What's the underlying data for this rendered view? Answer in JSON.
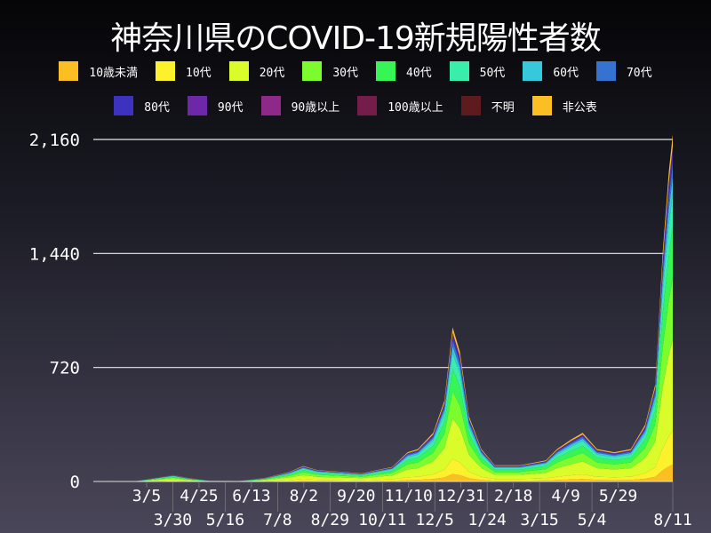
{
  "chart_data": {
    "type": "area",
    "stacked": true,
    "title": "神奈川県のCOVID-19新規陽性者数",
    "xlabel": "",
    "ylabel": "",
    "ylim": [
      0,
      2160
    ],
    "yticks": [
      "0",
      "720",
      "1,440",
      "2,160"
    ],
    "xticks": [
      "3/5",
      "3/30",
      "4/25",
      "5/16",
      "6/13",
      "7/8",
      "8/2",
      "8/29",
      "9/20",
      "10/11",
      "11/10",
      "12/5",
      "12/31",
      "1/24",
      "2/18",
      "3/15",
      "4/9",
      "5/4",
      "5/29",
      "8/11"
    ],
    "grid": "horizontal",
    "legend_placement": "top",
    "series": [
      {
        "name": "10歳未満",
        "color": "#fbbf24",
        "share": 0.05
      },
      {
        "name": "10代",
        "color": "#fcf12a",
        "share": 0.1
      },
      {
        "name": "20代",
        "color": "#d9fc2a",
        "share": 0.27
      },
      {
        "name": "30代",
        "color": "#7cfc2e",
        "share": 0.18
      },
      {
        "name": "40代",
        "color": "#37f555",
        "share": 0.15
      },
      {
        "name": "50代",
        "color": "#39eeaa",
        "share": 0.1
      },
      {
        "name": "60代",
        "color": "#38c8db",
        "share": 0.05
      },
      {
        "name": "70代",
        "color": "#3673d0",
        "share": 0.04
      },
      {
        "name": "80代",
        "color": "#3d32c0",
        "share": 0.03
      },
      {
        "name": "90代",
        "color": "#6c28a8",
        "share": 0.015
      },
      {
        "name": "90歳以上",
        "color": "#8e2889",
        "share": 0.002
      },
      {
        "name": "100歳以上",
        "color": "#741d4b",
        "share": 0.001
      },
      {
        "name": "不明",
        "color": "#5e1b1e",
        "share": 0.002
      },
      {
        "name": "非公表",
        "color": "#fbbf24",
        "share": 0.035
      }
    ],
    "totals": [
      [
        "2020-01-23",
        0
      ],
      [
        "2020-03-05",
        3
      ],
      [
        "2020-04-10",
        40
      ],
      [
        "2020-04-25",
        20
      ],
      [
        "2020-05-16",
        5
      ],
      [
        "2020-06-13",
        3
      ],
      [
        "2020-07-08",
        20
      ],
      [
        "2020-08-02",
        60
      ],
      [
        "2020-08-15",
        95
      ],
      [
        "2020-08-29",
        70
      ],
      [
        "2020-09-20",
        60
      ],
      [
        "2020-10-11",
        50
      ],
      [
        "2020-11-10",
        90
      ],
      [
        "2020-11-25",
        180
      ],
      [
        "2020-12-05",
        200
      ],
      [
        "2020-12-20",
        300
      ],
      [
        "2020-12-31",
        500
      ],
      [
        "2021-01-08",
        950
      ],
      [
        "2021-01-15",
        800
      ],
      [
        "2021-01-24",
        400
      ],
      [
        "2021-02-05",
        200
      ],
      [
        "2021-02-18",
        100
      ],
      [
        "2021-03-15",
        100
      ],
      [
        "2021-04-09",
        130
      ],
      [
        "2021-04-20",
        200
      ],
      [
        "2021-05-04",
        260
      ],
      [
        "2021-05-15",
        300
      ],
      [
        "2021-05-29",
        200
      ],
      [
        "2021-06-15",
        180
      ],
      [
        "2021-07-01",
        200
      ],
      [
        "2021-07-15",
        350
      ],
      [
        "2021-07-25",
        600
      ],
      [
        "2021-08-01",
        1400
      ],
      [
        "2021-08-07",
        1900
      ],
      [
        "2021-08-11",
        2140
      ]
    ],
    "x_range": [
      "2020-01-23",
      "2021-08-11"
    ]
  }
}
